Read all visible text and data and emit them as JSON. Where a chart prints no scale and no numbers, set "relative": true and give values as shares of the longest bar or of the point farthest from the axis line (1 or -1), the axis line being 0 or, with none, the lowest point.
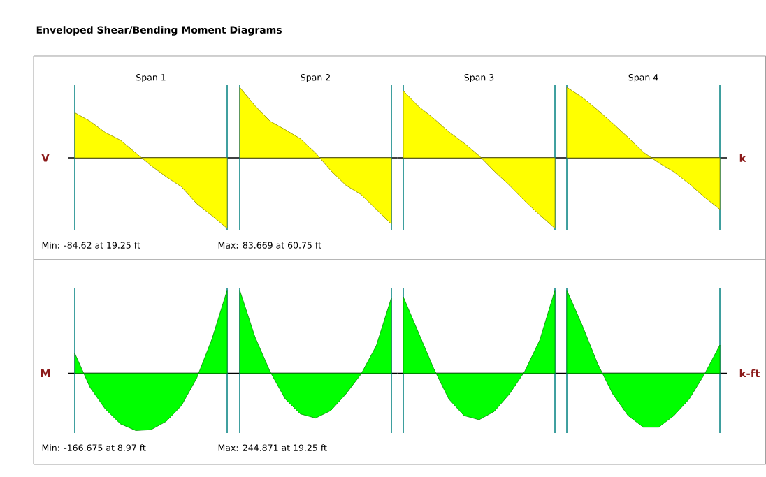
{
  "chart_data": [
    {
      "type": "area",
      "title": "Enveloped Shear/Bending Moment Diagrams",
      "subtitle": "Span 1",
      "relative": true,
      "ylabel": "V",
      "categories": [
        null,
        null,
        null,
        null,
        null,
        null,
        null,
        null,
        null,
        null,
        null
      ],
      "series": [
        {
          "color": "#ffff00",
          "values": [
            0.64,
            0.52,
            0.36,
            0.25,
            0.07,
            -0.11,
            -0.27,
            -0.41,
            -0.65,
            -0.82,
            -1
          ]
        }
      ],
      "annotations": [
        "Min: -84.62 at 19.25 ft"
      ]
    },
    {
      "type": "area",
      "subtitle": "Span 2",
      "relative": true,
      "categories": [
        null,
        null,
        null,
        null,
        null,
        null,
        null,
        null,
        null,
        null,
        null
      ],
      "series": [
        {
          "color": "#ffff00",
          "values": [
            1,
            0.74,
            0.52,
            0.4,
            0.27,
            0.07,
            -0.18,
            -0.39,
            -0.52,
            -0.73,
            -0.94
          ]
        }
      ],
      "annotations": [
        "Max: 83.669 at 60.75 ft"
      ]
    },
    {
      "type": "area",
      "subtitle": "Span 3",
      "relative": true,
      "categories": [
        null,
        null,
        null,
        null,
        null,
        null,
        null,
        null,
        null,
        null,
        null
      ],
      "series": [
        {
          "color": "#ffff00",
          "values": [
            0.95,
            0.73,
            0.56,
            0.37,
            0.21,
            0.03,
            -0.19,
            -0.39,
            -0.61,
            -0.81,
            -1
          ]
        }
      ]
    },
    {
      "type": "area",
      "subtitle": "Span 4",
      "relative": true,
      "y2label": "k",
      "categories": [
        null,
        null,
        null,
        null,
        null,
        null,
        null,
        null,
        null,
        null,
        null
      ],
      "series": [
        {
          "color": "#ffff00",
          "values": [
            1,
            0.86,
            0.68,
            0.49,
            0.29,
            0.08,
            -0.07,
            -0.2,
            -0.37,
            -0.56,
            -0.73
          ]
        }
      ]
    },
    {
      "type": "area",
      "relative": true,
      "ylabel": "M",
      "categories": [
        null,
        null,
        null,
        null,
        null,
        null,
        null,
        null,
        null,
        null,
        null
      ],
      "series": [
        {
          "color": "#00ff00",
          "values": [
            0.24,
            -0.17,
            -0.43,
            -0.61,
            -0.69,
            -0.68,
            -0.58,
            -0.39,
            -0.06,
            0.41,
            1
          ]
        }
      ],
      "annotations": [
        "Min: -166.675 at 8.97 ft"
      ]
    },
    {
      "type": "area",
      "relative": true,
      "categories": [
        null,
        null,
        null,
        null,
        null,
        null,
        null,
        null,
        null,
        null,
        null
      ],
      "series": [
        {
          "color": "#00ff00",
          "values": [
            1,
            0.44,
            0.02,
            -0.31,
            -0.49,
            -0.54,
            -0.45,
            -0.25,
            -0.01,
            0.33,
            0.91
          ]
        }
      ],
      "annotations": [
        "Max: 244.871 at 19.25 ft"
      ]
    },
    {
      "type": "area",
      "relative": true,
      "categories": [
        null,
        null,
        null,
        null,
        null,
        null,
        null,
        null,
        null,
        null,
        null
      ],
      "series": [
        {
          "color": "#00ff00",
          "values": [
            0.92,
            0.49,
            0.06,
            -0.31,
            -0.51,
            -0.56,
            -0.46,
            -0.25,
            0.02,
            0.4,
            1
          ]
        }
      ]
    },
    {
      "type": "area",
      "relative": true,
      "y2label": "k-ft",
      "categories": [
        null,
        null,
        null,
        null,
        null,
        null,
        null,
        null,
        null,
        null,
        null
      ],
      "series": [
        {
          "color": "#00ff00",
          "values": [
            1,
            0.58,
            0.12,
            -0.25,
            -0.51,
            -0.65,
            -0.65,
            -0.51,
            -0.31,
            -0.01,
            0.34
          ]
        }
      ]
    }
  ]
}
